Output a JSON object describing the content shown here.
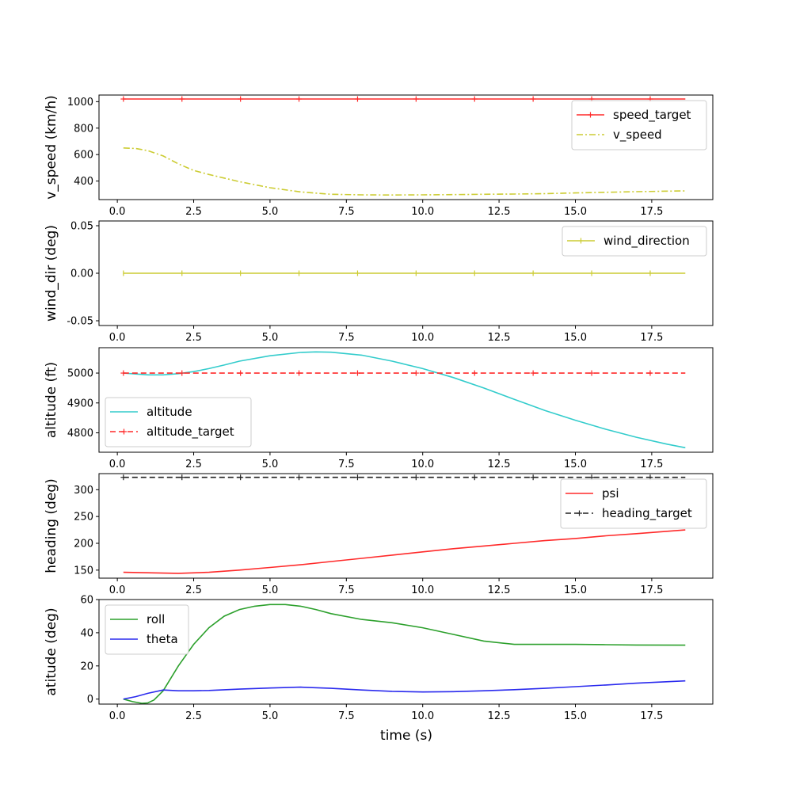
{
  "figure": {
    "xlabel": "time (s)"
  },
  "chart_data": [
    {
      "type": "line",
      "ylabel": "v_speed (km/h)",
      "xlim": [
        -0.6,
        19.5
      ],
      "ylim": [
        260,
        1050
      ],
      "yticks": [
        400,
        600,
        800,
        1000
      ],
      "xticks": [
        0.0,
        2.5,
        5.0,
        7.5,
        10.0,
        12.5,
        15.0,
        17.5
      ],
      "legend": "top-right",
      "series": [
        {
          "name": "speed_target",
          "color": "#ff2a2a",
          "dash": "solid",
          "marker": "+",
          "x": [
            0.2,
            18.6
          ],
          "y": [
            1020,
            1020
          ]
        },
        {
          "name": "v_speed",
          "color": "#cccc33",
          "dash": "dashdot",
          "marker": "none",
          "x": [
            0.2,
            0.6,
            1.0,
            1.5,
            2.0,
            2.5,
            3.0,
            4.0,
            5.0,
            6.0,
            7.0,
            8.0,
            9.0,
            10.0,
            11.0,
            12.0,
            13.0,
            14.0,
            15.0,
            16.0,
            17.0,
            18.6
          ],
          "y": [
            650,
            646,
            630,
            590,
            530,
            480,
            450,
            395,
            350,
            318,
            300,
            296,
            295,
            296,
            298,
            300,
            302,
            305,
            310,
            315,
            320,
            326
          ]
        }
      ]
    },
    {
      "type": "line",
      "ylabel": "wind_dir (deg)",
      "xlim": [
        -0.6,
        19.5
      ],
      "ylim": [
        -0.055,
        0.055
      ],
      "yticks": [
        -0.05,
        0.0,
        0.05
      ],
      "ytick_labels": [
        "-0.05",
        "0.00",
        "0.05"
      ],
      "xticks": [
        0.0,
        2.5,
        5.0,
        7.5,
        10.0,
        12.5,
        15.0,
        17.5
      ],
      "legend": "top-right",
      "series": [
        {
          "name": "wind_direction",
          "color": "#cccc33",
          "dash": "solid",
          "marker": "|",
          "x": [
            0.2,
            18.6
          ],
          "y": [
            0,
            0
          ]
        }
      ]
    },
    {
      "type": "line",
      "ylabel": "altitude (ft)",
      "xlim": [
        -0.6,
        19.5
      ],
      "ylim": [
        4735,
        5085
      ],
      "yticks": [
        4800,
        4900,
        5000
      ],
      "xticks": [
        0.0,
        2.5,
        5.0,
        7.5,
        10.0,
        12.5,
        15.0,
        17.5
      ],
      "legend": "bottom-left",
      "series": [
        {
          "name": "altitude",
          "color": "#33cccc",
          "dash": "solid",
          "marker": "none",
          "x": [
            0.2,
            0.6,
            1.0,
            1.5,
            2.0,
            2.5,
            3.0,
            3.5,
            4.0,
            5.0,
            6.0,
            6.5,
            7.0,
            8.0,
            9.0,
            10.0,
            11.0,
            12.0,
            13.0,
            14.0,
            15.0,
            16.0,
            17.0,
            18.0,
            18.6
          ],
          "y": [
            5000,
            4997,
            4994,
            4994,
            4998,
            5005,
            5015,
            5027,
            5040,
            5058,
            5069,
            5071,
            5070,
            5060,
            5040,
            5015,
            4985,
            4950,
            4912,
            4875,
            4842,
            4812,
            4785,
            4762,
            4750
          ]
        },
        {
          "name": "altitude_target",
          "color": "#ff2a2a",
          "dash": "dashed",
          "marker": "+",
          "x": [
            0.2,
            18.6
          ],
          "y": [
            5000,
            5000
          ]
        }
      ]
    },
    {
      "type": "line",
      "ylabel": "heading (deg)",
      "xlim": [
        -0.6,
        19.5
      ],
      "ylim": [
        135,
        330
      ],
      "yticks": [
        150,
        200,
        250,
        300
      ],
      "xticks": [
        0.0,
        2.5,
        5.0,
        7.5,
        10.0,
        12.5,
        15.0,
        17.5
      ],
      "legend": "top-right",
      "series": [
        {
          "name": "psi",
          "color": "#ff2a2a",
          "dash": "solid",
          "marker": "none",
          "x": [
            0.2,
            1.0,
            2.0,
            3.0,
            4.0,
            5.0,
            6.0,
            7.0,
            8.0,
            9.0,
            10.0,
            11.0,
            12.0,
            13.0,
            14.0,
            15.0,
            16.0,
            17.0,
            18.6
          ],
          "y": [
            146,
            145,
            144,
            146,
            150,
            155,
            160,
            166,
            172,
            178,
            184,
            190,
            195,
            200,
            205,
            209,
            214,
            218,
            225
          ]
        },
        {
          "name": "heading_target",
          "color": "#222222",
          "dash": "dashed",
          "marker": "+",
          "x": [
            0.2,
            18.6
          ],
          "y": [
            323,
            323
          ]
        }
      ]
    },
    {
      "type": "line",
      "ylabel": "atitude (deg)",
      "xlim": [
        -0.6,
        19.5
      ],
      "ylim": [
        -3,
        60
      ],
      "yticks": [
        0,
        20,
        40,
        60
      ],
      "xticks": [
        0.0,
        2.5,
        5.0,
        7.5,
        10.0,
        12.5,
        15.0,
        17.5
      ],
      "legend": "top-left",
      "series": [
        {
          "name": "roll",
          "color": "#2ca02c",
          "dash": "solid",
          "marker": "none",
          "x": [
            0.2,
            0.5,
            0.8,
            1.0,
            1.2,
            1.5,
            2.0,
            2.5,
            3.0,
            3.5,
            4.0,
            4.5,
            5.0,
            5.5,
            6.0,
            6.5,
            7.0,
            8.0,
            9.0,
            10.0,
            11.0,
            12.0,
            13.0,
            14.0,
            15.0,
            16.0,
            17.0,
            18.6
          ],
          "y": [
            0,
            -1.5,
            -2.5,
            -2.3,
            -0.5,
            5,
            20,
            33,
            43,
            50,
            54,
            56,
            57,
            57,
            56,
            54,
            51.5,
            48,
            46,
            43,
            39,
            35,
            33,
            33,
            33,
            32.8,
            32.6,
            32.5
          ]
        },
        {
          "name": "theta",
          "color": "#2a2aee",
          "dash": "solid",
          "marker": "none",
          "x": [
            0.2,
            0.6,
            1.0,
            1.5,
            2.0,
            2.5,
            3.0,
            4.0,
            5.0,
            6.0,
            7.0,
            8.0,
            9.0,
            10.0,
            11.0,
            12.0,
            13.0,
            14.0,
            15.0,
            16.0,
            17.0,
            18.6
          ],
          "y": [
            0,
            1.5,
            3.5,
            5.5,
            5,
            5,
            5.2,
            6,
            6.7,
            7.2,
            6.5,
            5.5,
            4.7,
            4.3,
            4.5,
            5,
            5.7,
            6.5,
            7.5,
            8.5,
            9.6,
            11
          ]
        }
      ]
    }
  ]
}
